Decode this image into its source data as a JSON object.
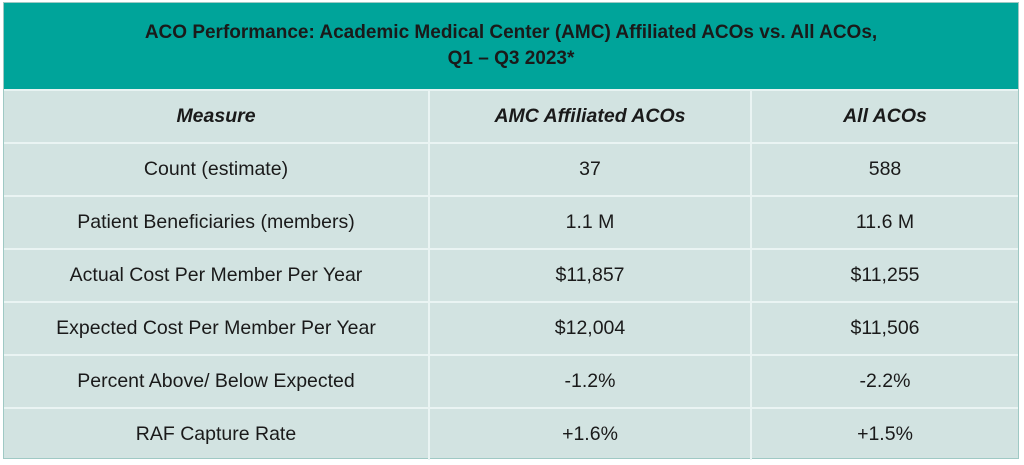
{
  "title": {
    "line1": "ACO Performance: Academic Medical Center (AMC) Affiliated ACOs vs. All ACOs,",
    "line2": "Q1 – Q3 2023*"
  },
  "table": {
    "headers": [
      "Measure",
      "AMC Affiliated ACOs",
      "All ACOs"
    ],
    "rows": [
      [
        "Count (estimate)",
        "37",
        "588"
      ],
      [
        "Patient Beneficiaries (members)",
        "1.1 M",
        "11.6 M"
      ],
      [
        "Actual Cost Per Member Per Year",
        "$11,857",
        "$11,255"
      ],
      [
        "Expected Cost Per Member Per Year",
        "$12,004",
        "$11,506"
      ],
      [
        "Percent Above/ Below Expected",
        "-1.2%",
        "-2.2%"
      ],
      [
        "RAF Capture Rate",
        "+1.6%",
        "+1.5%"
      ]
    ]
  },
  "colors": {
    "header_bg": "#00a49a",
    "table_bg": "#d2e3e1",
    "grid_lines": "#eaf4f3"
  }
}
